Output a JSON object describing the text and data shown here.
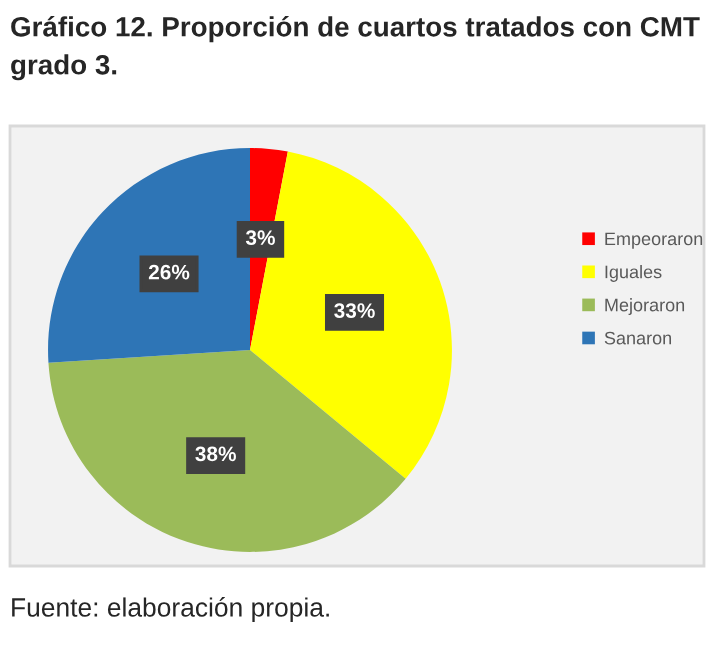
{
  "chart_data": {
    "type": "pie",
    "title": "Gráfico 12. Proporción de cuartos tratados con CMT grado 3.",
    "categories": [
      "Empeoraron",
      "Iguales",
      "Mejoraron",
      "Sanaron"
    ],
    "values": [
      3,
      33,
      38,
      26
    ],
    "colors": [
      "#ff0000",
      "#ffff00",
      "#9bbb59",
      "#2e75b6"
    ],
    "value_labels": [
      "3%",
      "33%",
      "38%",
      "26%"
    ],
    "legend": "right",
    "annotations": [
      "Fuente: elaboración propia."
    ]
  }
}
